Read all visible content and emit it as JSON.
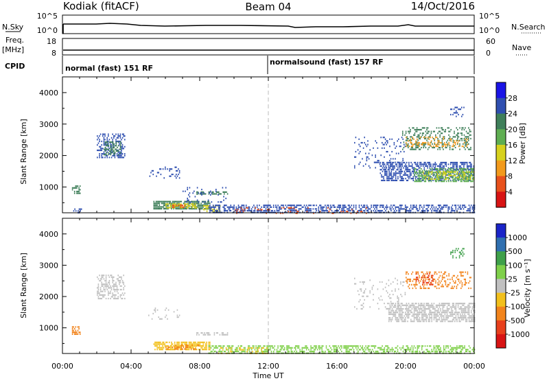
{
  "header": {
    "site": "Kodiak (fitACF)",
    "beam": "Beam 04",
    "date": "14/Oct/2016"
  },
  "params": {
    "nsky_label": "N.Sky",
    "nsearch_label": "N.Search",
    "nsky_ticks": [
      "10^5",
      "10^0"
    ],
    "nsearch_ticks": [
      "10^5",
      "10^0"
    ],
    "freq_label": "Freq.",
    "freq_unit": "[MHz]",
    "freq_ticks": [
      "18",
      "8"
    ],
    "nave_label": "Nave",
    "nave_ticks": [
      "60",
      "0"
    ],
    "cpid_label": "CPID",
    "modes": [
      {
        "label": "normal (fast) 151 RF",
        "start_hour": 0
      },
      {
        "label": "normalsound (fast) 157 RF",
        "start_hour": 12
      }
    ]
  },
  "time_axis": {
    "label": "Time UT",
    "ticks": [
      "00:00",
      "04:00",
      "08:00",
      "12:00",
      "16:00",
      "20:00",
      "00:00"
    ],
    "tick_hours": [
      0,
      4,
      8,
      12,
      16,
      20,
      24
    ]
  },
  "chart_data": [
    {
      "type": "heatmap",
      "name": "power",
      "ylabel": "Slant Range [km]",
      "ylim": [
        180,
        4500
      ],
      "yticks": [
        1000,
        2000,
        3000,
        4000
      ],
      "xlim": [
        0,
        24
      ],
      "colorbar": {
        "label": "Power [dB]",
        "ticks": [
          "4",
          "8",
          "12",
          "16",
          "20",
          "24",
          "28"
        ],
        "colors": [
          "#1a14e6",
          "#2f4fb0",
          "#3f7f5a",
          "#5fae52",
          "#d7d11e",
          "#f29a1c",
          "#e8511c",
          "#d81414"
        ]
      },
      "regions": [
        {
          "t0": 0.55,
          "t1": 1.05,
          "r0": 780,
          "r1": 1050,
          "color": "#3f7f5a",
          "density": 0.65
        },
        {
          "t0": 0.5,
          "t1": 1.2,
          "r0": 180,
          "r1": 320,
          "color": "#2f4fb0",
          "density": 0.3
        },
        {
          "t0": 2.0,
          "t1": 3.6,
          "r0": 1950,
          "r1": 2700,
          "color": "#2f4fb0",
          "density": 0.45
        },
        {
          "t0": 2.4,
          "t1": 3.4,
          "r0": 2050,
          "r1": 2450,
          "color": "#3f7f5a",
          "density": 0.5
        },
        {
          "t0": 5.0,
          "t1": 6.8,
          "r0": 1300,
          "r1": 1650,
          "color": "#2f4fb0",
          "density": 0.18
        },
        {
          "t0": 5.3,
          "t1": 8.6,
          "r0": 300,
          "r1": 560,
          "color": "#3f7f5a",
          "density": 0.75
        },
        {
          "t0": 6.0,
          "t1": 7.8,
          "r0": 330,
          "r1": 480,
          "color": "#d7d11e",
          "density": 0.6
        },
        {
          "t0": 6.4,
          "t1": 7.2,
          "r0": 340,
          "r1": 440,
          "color": "#e8511c",
          "density": 0.5
        },
        {
          "t0": 7.8,
          "t1": 9.6,
          "r0": 760,
          "r1": 860,
          "color": "#3f7f5a",
          "density": 0.55
        },
        {
          "t0": 7.0,
          "t1": 9.5,
          "r0": 500,
          "r1": 1000,
          "color": "#2f4fb0",
          "density": 0.12
        },
        {
          "t0": 8.2,
          "t1": 9.2,
          "r0": 200,
          "r1": 420,
          "color": "#d7d11e",
          "density": 0.5
        },
        {
          "t0": 8.5,
          "t1": 24,
          "r0": 180,
          "r1": 440,
          "color": "#2f4fb0",
          "density": 0.55
        },
        {
          "t0": 10.0,
          "t1": 18.0,
          "r0": 180,
          "r1": 360,
          "color": "#e8511c",
          "density": 0.12
        },
        {
          "t0": 17.0,
          "t1": 20.0,
          "r0": 1600,
          "r1": 2600,
          "color": "#2f4fb0",
          "density": 0.13
        },
        {
          "t0": 18.5,
          "t1": 24,
          "r0": 1200,
          "r1": 1800,
          "color": "#2f4fb0",
          "density": 0.55
        },
        {
          "t0": 20.5,
          "t1": 24,
          "r0": 1200,
          "r1": 1600,
          "color": "#5fae52",
          "density": 0.6
        },
        {
          "t0": 21.0,
          "t1": 24,
          "r0": 1250,
          "r1": 1500,
          "color": "#d7d11e",
          "density": 0.35
        },
        {
          "t0": 19.8,
          "t1": 23.8,
          "r0": 2200,
          "r1": 2900,
          "color": "#3f7f5a",
          "density": 0.3
        },
        {
          "t0": 20.0,
          "t1": 23.6,
          "r0": 2300,
          "r1": 2600,
          "color": "#f29a1c",
          "density": 0.25
        },
        {
          "t0": 22.6,
          "t1": 23.4,
          "r0": 3250,
          "r1": 3550,
          "color": "#2f4fb0",
          "density": 0.3
        }
      ]
    },
    {
      "type": "heatmap",
      "name": "velocity",
      "ylabel": "Slant Range [km]",
      "ylim": [
        180,
        4500
      ],
      "yticks": [
        1000,
        2000,
        3000,
        4000
      ],
      "xlim": [
        0,
        24
      ],
      "colorbar": {
        "label": "Velocity [m s⁻¹]",
        "ticks": [
          "1000",
          "500",
          "100",
          "25",
          "-25",
          "-100",
          "-500",
          "-1000"
        ],
        "colors": [
          "#1a24c8",
          "#2f6fb0",
          "#3fa04a",
          "#7fd04a",
          "#c0c0c0",
          "#f2c01c",
          "#f2841c",
          "#e8401c",
          "#d81414"
        ]
      },
      "regions": [
        {
          "t0": 0.55,
          "t1": 1.05,
          "r0": 780,
          "r1": 1050,
          "color": "#f2841c",
          "density": 0.65
        },
        {
          "t0": 2.0,
          "t1": 3.6,
          "r0": 1950,
          "r1": 2700,
          "color": "#c0c0c0",
          "density": 0.45
        },
        {
          "t0": 5.0,
          "t1": 6.8,
          "r0": 1300,
          "r1": 1650,
          "color": "#c0c0c0",
          "density": 0.15
        },
        {
          "t0": 5.3,
          "t1": 8.6,
          "r0": 300,
          "r1": 560,
          "color": "#f2c01c",
          "density": 0.75
        },
        {
          "t0": 6.0,
          "t1": 8.0,
          "r0": 300,
          "r1": 460,
          "color": "#f2841c",
          "density": 0.45
        },
        {
          "t0": 7.8,
          "t1": 9.6,
          "r0": 760,
          "r1": 860,
          "color": "#c0c0c0",
          "density": 0.5
        },
        {
          "t0": 8.5,
          "t1": 24,
          "r0": 180,
          "r1": 440,
          "color": "#7fd04a",
          "density": 0.5
        },
        {
          "t0": 9.0,
          "t1": 12.0,
          "r0": 180,
          "r1": 380,
          "color": "#f2c01c",
          "density": 0.25
        },
        {
          "t0": 17.0,
          "t1": 20.0,
          "r0": 1600,
          "r1": 2600,
          "color": "#c0c0c0",
          "density": 0.12
        },
        {
          "t0": 19.0,
          "t1": 24,
          "r0": 1200,
          "r1": 1800,
          "color": "#c0c0c0",
          "density": 0.65
        },
        {
          "t0": 20.0,
          "t1": 23.8,
          "r0": 2250,
          "r1": 2800,
          "color": "#f2841c",
          "density": 0.3
        },
        {
          "t0": 20.6,
          "t1": 21.6,
          "r0": 2400,
          "r1": 2750,
          "color": "#e8401c",
          "density": 0.3
        },
        {
          "t0": 22.6,
          "t1": 23.4,
          "r0": 3250,
          "r1": 3550,
          "color": "#3fa04a",
          "density": 0.3
        }
      ]
    }
  ]
}
